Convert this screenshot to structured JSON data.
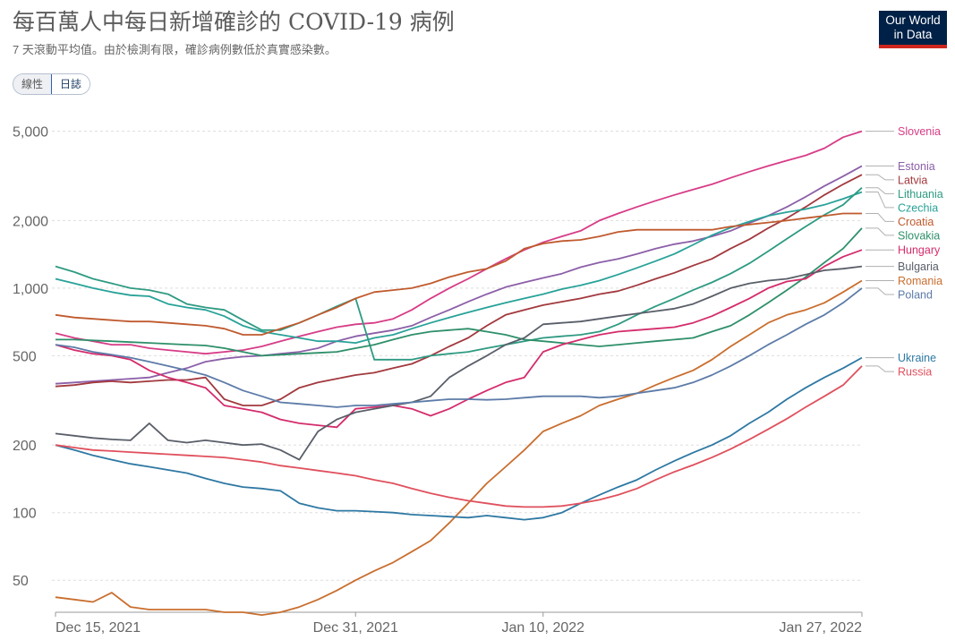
{
  "header": {
    "title": "每百萬人中每日新增確診的 COVID-19 病例",
    "subtitle": "7 天滾動平均值。由於檢測有限，確診病例數低於真實感染數。",
    "logo_line1": "Our World",
    "logo_line2": "in Data"
  },
  "scale_toggle": {
    "linear_label": "線性",
    "log_label": "日誌",
    "selected": "log"
  },
  "chart_data": {
    "type": "line",
    "yscale": "log",
    "ylim": [
      36,
      6500
    ],
    "xlim": [
      "2021-12-15",
      "2022-01-27"
    ],
    "grid": true,
    "legend": "right",
    "y_ticks": [
      50,
      100,
      200,
      500,
      1000,
      2000,
      5000
    ],
    "y_tick_labels": [
      "50",
      "100",
      "200",
      "500",
      "1,000",
      "2,000",
      "5,000"
    ],
    "x_ticks": [
      "2021-12-15",
      "2021-12-31",
      "2022-01-10",
      "2022-01-27"
    ],
    "x_tick_labels": [
      "Dec 15, 2021",
      "Dec 31, 2021",
      "Jan 10, 2022",
      "Jan 27, 2022"
    ],
    "x": [
      "2021-12-15",
      "2021-12-16",
      "2021-12-17",
      "2021-12-18",
      "2021-12-19",
      "2021-12-20",
      "2021-12-21",
      "2021-12-22",
      "2021-12-23",
      "2021-12-24",
      "2021-12-25",
      "2021-12-26",
      "2021-12-27",
      "2021-12-28",
      "2021-12-29",
      "2021-12-30",
      "2021-12-31",
      "2022-01-01",
      "2022-01-02",
      "2022-01-03",
      "2022-01-04",
      "2022-01-05",
      "2022-01-06",
      "2022-01-07",
      "2022-01-08",
      "2022-01-09",
      "2022-01-10",
      "2022-01-11",
      "2022-01-12",
      "2022-01-13",
      "2022-01-14",
      "2022-01-15",
      "2022-01-16",
      "2022-01-17",
      "2022-01-18",
      "2022-01-19",
      "2022-01-20",
      "2022-01-21",
      "2022-01-22",
      "2022-01-23",
      "2022-01-24",
      "2022-01-25",
      "2022-01-26",
      "2022-01-27"
    ],
    "series": [
      {
        "name": "Slovenia",
        "color": "#d73c87",
        "values": [
          630,
          600,
          580,
          560,
          560,
          540,
          530,
          520,
          510,
          520,
          530,
          550,
          580,
          610,
          640,
          670,
          690,
          700,
          730,
          800,
          900,
          1000,
          1100,
          1220,
          1350,
          1480,
          1600,
          1700,
          1800,
          2000,
          2150,
          2300,
          2450,
          2600,
          2750,
          2900,
          3100,
          3300,
          3500,
          3700,
          3900,
          4200,
          4700,
          5000
        ]
      },
      {
        "name": "Estonia",
        "color": "#8c5fa8",
        "values": [
          375,
          380,
          385,
          390,
          395,
          400,
          420,
          440,
          470,
          485,
          495,
          500,
          510,
          520,
          540,
          580,
          610,
          630,
          650,
          680,
          740,
          800,
          870,
          940,
          1010,
          1060,
          1110,
          1160,
          1240,
          1300,
          1350,
          1420,
          1500,
          1570,
          1620,
          1700,
          1800,
          1950,
          2100,
          2300,
          2550,
          2850,
          3150,
          3500
        ]
      },
      {
        "name": "Latvia",
        "color": "#a2393e",
        "values": [
          365,
          370,
          380,
          385,
          380,
          385,
          390,
          390,
          400,
          320,
          300,
          300,
          320,
          360,
          380,
          395,
          410,
          420,
          440,
          460,
          500,
          550,
          600,
          680,
          760,
          800,
          840,
          870,
          900,
          940,
          970,
          1030,
          1100,
          1170,
          1260,
          1350,
          1500,
          1650,
          1850,
          2050,
          2300,
          2600,
          2900,
          3200
        ]
      },
      {
        "name": "Czechia",
        "color": "#28a298",
        "values": [
          1100,
          1050,
          1000,
          960,
          930,
          920,
          850,
          820,
          800,
          750,
          680,
          640,
          620,
          600,
          580,
          580,
          570,
          600,
          620,
          660,
          700,
          740,
          780,
          820,
          860,
          900,
          940,
          990,
          1030,
          1080,
          1150,
          1230,
          1320,
          1420,
          1560,
          1720,
          1860,
          1980,
          2100,
          2180,
          2250,
          2350,
          2500,
          2680
        ]
      },
      {
        "name": "Lithuania",
        "color": "#2e9a82",
        "values": [
          1250,
          1180,
          1100,
          1050,
          1000,
          980,
          940,
          850,
          820,
          800,
          720,
          650,
          650,
          700,
          760,
          830,
          900,
          480,
          480,
          480,
          500,
          510,
          520,
          540,
          560,
          580,
          600,
          610,
          620,
          640,
          690,
          760,
          830,
          900,
          980,
          1060,
          1160,
          1290,
          1460,
          1660,
          1880,
          2120,
          2350,
          2800
        ]
      },
      {
        "name": "Croatia",
        "color": "#c05a2e",
        "values": [
          760,
          740,
          730,
          720,
          710,
          710,
          700,
          690,
          680,
          660,
          620,
          620,
          660,
          700,
          760,
          820,
          900,
          960,
          980,
          1000,
          1050,
          1120,
          1180,
          1220,
          1320,
          1500,
          1580,
          1620,
          1640,
          1700,
          1780,
          1820,
          1820,
          1820,
          1820,
          1820,
          1880,
          1920,
          1960,
          2000,
          2050,
          2100,
          2150,
          2150
        ]
      },
      {
        "name": "Slovakia",
        "color": "#2e8f6a",
        "values": [
          590,
          590,
          585,
          580,
          575,
          570,
          565,
          560,
          555,
          540,
          520,
          500,
          505,
          510,
          515,
          520,
          540,
          560,
          590,
          620,
          640,
          650,
          660,
          640,
          620,
          590,
          580,
          570,
          560,
          550,
          560,
          570,
          580,
          590,
          600,
          640,
          680,
          760,
          860,
          980,
          1120,
          1300,
          1500,
          1850
        ]
      },
      {
        "name": "Hungary",
        "color": "#d42c6c",
        "values": [
          560,
          530,
          510,
          500,
          480,
          430,
          400,
          380,
          360,
          300,
          290,
          280,
          260,
          250,
          245,
          240,
          290,
          295,
          300,
          290,
          270,
          290,
          320,
          350,
          380,
          400,
          520,
          560,
          590,
          620,
          640,
          650,
          660,
          670,
          700,
          750,
          820,
          900,
          1000,
          1070,
          1100,
          1250,
          1380,
          1480
        ]
      },
      {
        "name": "Bulgaria",
        "color": "#595e69",
        "values": [
          225,
          220,
          215,
          212,
          210,
          250,
          210,
          205,
          210,
          205,
          200,
          202,
          190,
          172,
          230,
          260,
          280,
          290,
          300,
          310,
          330,
          400,
          450,
          500,
          560,
          600,
          690,
          700,
          710,
          730,
          750,
          770,
          790,
          810,
          850,
          920,
          1000,
          1050,
          1080,
          1100,
          1150,
          1200,
          1220,
          1250
        ]
      },
      {
        "name": "Romania",
        "color": "#c96e2e",
        "values": [
          42,
          41,
          40,
          44,
          38,
          37,
          37,
          37,
          37,
          36,
          36,
          35,
          36,
          38,
          41,
          45,
          50,
          55,
          60,
          67,
          75,
          90,
          110,
          135,
          160,
          190,
          230,
          250,
          270,
          300,
          320,
          340,
          370,
          400,
          430,
          480,
          550,
          620,
          700,
          760,
          800,
          860,
          960,
          1080
        ]
      },
      {
        "name": "Poland",
        "color": "#5c7ba8",
        "values": [
          560,
          545,
          520,
          505,
          490,
          470,
          450,
          430,
          410,
          380,
          350,
          330,
          310,
          305,
          300,
          295,
          300,
          300,
          305,
          310,
          315,
          320,
          320,
          318,
          320,
          325,
          330,
          330,
          330,
          325,
          330,
          340,
          350,
          360,
          380,
          410,
          450,
          500,
          560,
          620,
          690,
          760,
          860,
          1000
        ]
      },
      {
        "name": "Ukraine",
        "color": "#2e78a3",
        "values": [
          200,
          190,
          180,
          172,
          165,
          160,
          155,
          150,
          142,
          135,
          130,
          128,
          125,
          110,
          105,
          102,
          102,
          101,
          100,
          98,
          97,
          96,
          95,
          97,
          95,
          93,
          95,
          100,
          110,
          120,
          130,
          140,
          155,
          170,
          185,
          200,
          220,
          250,
          280,
          320,
          360,
          400,
          440,
          490
        ]
      },
      {
        "name": "Russia",
        "color": "#e0505d",
        "values": [
          200,
          195,
          190,
          188,
          186,
          184,
          182,
          180,
          178,
          176,
          172,
          168,
          162,
          158,
          154,
          150,
          146,
          140,
          135,
          128,
          122,
          117,
          113,
          110,
          107,
          106,
          106,
          107,
          110,
          114,
          120,
          128,
          140,
          152,
          163,
          176,
          192,
          212,
          235,
          262,
          295,
          330,
          370,
          450
        ]
      }
    ],
    "legend_order": [
      "Slovenia",
      "Estonia",
      "Latvia",
      "Czechia",
      "Lithuania",
      "Croatia",
      "Slovakia",
      "Hungary",
      "Bulgaria",
      "Romania",
      "Poland",
      "Ukraine",
      "Russia"
    ]
  }
}
